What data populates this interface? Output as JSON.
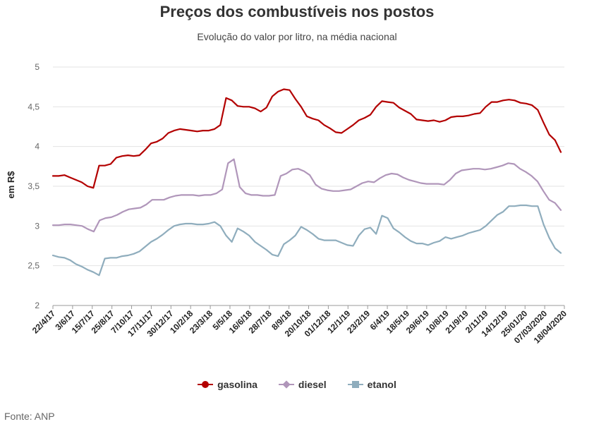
{
  "chart_data": {
    "type": "line",
    "title": "Preços dos combustíveis nos postos",
    "subtitle": "Evolução do valor por litro, na média nacional",
    "ylabel": "em R$",
    "xlabel": "",
    "ylim": [
      2,
      5
    ],
    "yticks": [
      "2",
      "2,5",
      "3",
      "3,5",
      "4",
      "4,5",
      "5"
    ],
    "grid": "horizontal",
    "legend_position": "bottom",
    "x_tick_labels": [
      "22/4/17",
      "3/6/17",
      "15/7/17",
      "25/8/17",
      "7/10/17",
      "17/11/17",
      "30/12/17",
      "10/2/18",
      "23/3/18",
      "5/5/18",
      "16/6/18",
      "28/7/18",
      "8/9/18",
      "20/10/18",
      "01/12/18",
      "12/1/19",
      "23/2/19",
      "6/4/19",
      "18/5/19",
      "29/6/19",
      "10/8/19",
      "21/9/19",
      "2/11/19",
      "14/12/19",
      "25/01/20",
      "07/03/2020",
      "18/04/2020"
    ],
    "series": [
      {
        "name": "gasolina",
        "color": "#b30000",
        "marker": "circle",
        "values": [
          3.63,
          3.63,
          3.64,
          3.61,
          3.58,
          3.55,
          3.5,
          3.48,
          3.76,
          3.76,
          3.78,
          3.86,
          3.88,
          3.89,
          3.88,
          3.89,
          3.96,
          4.04,
          4.06,
          4.1,
          4.17,
          4.2,
          4.22,
          4.21,
          4.2,
          4.19,
          4.2,
          4.2,
          4.22,
          4.27,
          4.61,
          4.58,
          4.51,
          4.5,
          4.5,
          4.48,
          4.44,
          4.49,
          4.63,
          4.69,
          4.72,
          4.71,
          4.6,
          4.5,
          4.38,
          4.35,
          4.33,
          4.27,
          4.23,
          4.18,
          4.17,
          4.22,
          4.27,
          4.33,
          4.36,
          4.4,
          4.5,
          4.57,
          4.56,
          4.55,
          4.49,
          4.45,
          4.41,
          4.34,
          4.33,
          4.32,
          4.33,
          4.31,
          4.33,
          4.37,
          4.38,
          4.38,
          4.39,
          4.41,
          4.42,
          4.5,
          4.56,
          4.56,
          4.58,
          4.59,
          4.58,
          4.55,
          4.54,
          4.52,
          4.46,
          4.3,
          4.15,
          4.08,
          3.93
        ]
      },
      {
        "name": "diesel",
        "color": "#b096ba",
        "marker": "diamond",
        "values": [
          3.01,
          3.01,
          3.02,
          3.02,
          3.01,
          3.0,
          2.96,
          2.93,
          3.07,
          3.1,
          3.11,
          3.14,
          3.18,
          3.21,
          3.22,
          3.23,
          3.27,
          3.33,
          3.33,
          3.33,
          3.36,
          3.38,
          3.39,
          3.39,
          3.39,
          3.38,
          3.39,
          3.39,
          3.41,
          3.46,
          3.79,
          3.84,
          3.49,
          3.41,
          3.39,
          3.39,
          3.38,
          3.38,
          3.39,
          3.63,
          3.66,
          3.71,
          3.72,
          3.69,
          3.64,
          3.52,
          3.47,
          3.45,
          3.44,
          3.44,
          3.45,
          3.46,
          3.5,
          3.54,
          3.56,
          3.55,
          3.6,
          3.64,
          3.66,
          3.65,
          3.61,
          3.58,
          3.56,
          3.54,
          3.53,
          3.53,
          3.53,
          3.52,
          3.58,
          3.66,
          3.7,
          3.71,
          3.72,
          3.72,
          3.71,
          3.72,
          3.74,
          3.76,
          3.79,
          3.78,
          3.72,
          3.68,
          3.63,
          3.56,
          3.44,
          3.33,
          3.29,
          3.2
        ]
      },
      {
        "name": "etanol",
        "color": "#8fadbd",
        "marker": "square",
        "values": [
          2.63,
          2.61,
          2.6,
          2.57,
          2.52,
          2.49,
          2.45,
          2.42,
          2.38,
          2.59,
          2.6,
          2.6,
          2.62,
          2.63,
          2.65,
          2.68,
          2.74,
          2.8,
          2.84,
          2.89,
          2.95,
          3.0,
          3.02,
          3.03,
          3.03,
          3.02,
          3.02,
          3.03,
          3.05,
          3.0,
          2.88,
          2.8,
          2.97,
          2.93,
          2.88,
          2.8,
          2.75,
          2.7,
          2.64,
          2.62,
          2.77,
          2.82,
          2.88,
          2.99,
          2.95,
          2.9,
          2.84,
          2.82,
          2.82,
          2.82,
          2.79,
          2.76,
          2.75,
          2.88,
          2.96,
          2.98,
          2.9,
          3.13,
          3.1,
          2.97,
          2.92,
          2.86,
          2.81,
          2.78,
          2.78,
          2.76,
          2.79,
          2.81,
          2.86,
          2.84,
          2.86,
          2.88,
          2.91,
          2.93,
          2.95,
          3.0,
          3.07,
          3.14,
          3.18,
          3.25,
          3.25,
          3.26,
          3.26,
          3.25,
          3.25,
          3.02,
          2.85,
          2.72,
          2.66
        ]
      }
    ]
  },
  "legend": {
    "items": [
      {
        "label": "gasolina",
        "color": "#b30000",
        "marker": "circle"
      },
      {
        "label": "diesel",
        "color": "#b096ba",
        "marker": "diamond"
      },
      {
        "label": "etanol",
        "color": "#8fadbd",
        "marker": "square"
      }
    ]
  },
  "source": "Fonte: ANP"
}
